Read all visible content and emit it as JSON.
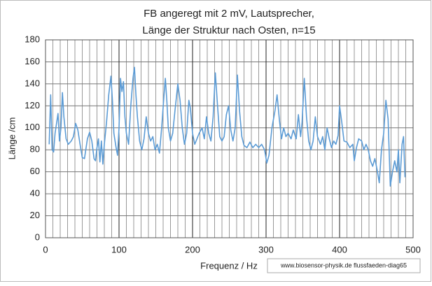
{
  "chart_data": {
    "type": "line",
    "title": [
      "FB angeregt mit 2 mV, Lautsprecher,",
      "Länge der Struktur nach Osten, n=15"
    ],
    "x_label": "Frequenz / Hz",
    "y_label": "Länge /cm",
    "annotation": "www.biosensor-physik.de  flussfaeden-diag65",
    "x": [
      5,
      7,
      9,
      11,
      13,
      17,
      19,
      21,
      23,
      25,
      28,
      31,
      35,
      38,
      41,
      44,
      47,
      50,
      53,
      57,
      60,
      63,
      66,
      68,
      70,
      72,
      74,
      76,
      78,
      80,
      83,
      86,
      89,
      91,
      93,
      96,
      98,
      100,
      102,
      104,
      106,
      108,
      110,
      113,
      116,
      119,
      121,
      123,
      125,
      128,
      131,
      134,
      137,
      140,
      143,
      146,
      149,
      152,
      155,
      158,
      161,
      163,
      165,
      167,
      170,
      173,
      176,
      180,
      183,
      186,
      189,
      192,
      195,
      197,
      200,
      203,
      206,
      209,
      213,
      216,
      219,
      222,
      225,
      228,
      231,
      234,
      237,
      240,
      243,
      246,
      249,
      252,
      255,
      258,
      261,
      264,
      267,
      270,
      274,
      278,
      282,
      286,
      290,
      294,
      298,
      301,
      304,
      308,
      312,
      315,
      318,
      321,
      324,
      327,
      330,
      334,
      337,
      341,
      344,
      347,
      349,
      352,
      355,
      358,
      361,
      364,
      367,
      370,
      374,
      377,
      380,
      383,
      386,
      389,
      392,
      395,
      398,
      400,
      403,
      406,
      410,
      414,
      418,
      420,
      423,
      426,
      430,
      433,
      436,
      439,
      442,
      445,
      448,
      451,
      454,
      457,
      460,
      463,
      466,
      469,
      472,
      475,
      478,
      480,
      482,
      485,
      487,
      489
    ],
    "series": [
      {
        "name": "Länge",
        "color": "#5b9bd5",
        "values": [
          85,
          130,
          80,
          78,
          95,
          113,
          88,
          100,
          132,
          110,
          90,
          85,
          88,
          92,
          104,
          98,
          85,
          73,
          72,
          90,
          96,
          88,
          72,
          70,
          82,
          90,
          69,
          88,
          67,
          85,
          105,
          130,
          147,
          125,
          95,
          82,
          75,
          100,
          145,
          133,
          142,
          110,
          95,
          85,
          120,
          145,
          155,
          130,
          110,
          88,
          80,
          90,
          110,
          95,
          88,
          92,
          80,
          85,
          77,
          100,
          128,
          145,
          125,
          100,
          88,
          95,
          115,
          140,
          125,
          100,
          85,
          95,
          125,
          118,
          95,
          85,
          90,
          95,
          100,
          90,
          110,
          95,
          88,
          110,
          150,
          120,
          92,
          88,
          92,
          112,
          120,
          98,
          88,
          100,
          148,
          115,
          92,
          84,
          82,
          87,
          82,
          85,
          82,
          85,
          80,
          68,
          75,
          100,
          115,
          130,
          108,
          90,
          100,
          92,
          95,
          90,
          98,
          90,
          112,
          92,
          105,
          145,
          110,
          88,
          80,
          88,
          110,
          92,
          85,
          92,
          80,
          100,
          90,
          82,
          88,
          85,
          93,
          120,
          105,
          88,
          87,
          82,
          85,
          70,
          82,
          90,
          88,
          80,
          85,
          80,
          70,
          65,
          72,
          62,
          50,
          80,
          95,
          125,
          108,
          47,
          60,
          70,
          60,
          80,
          50,
          85,
          92,
          55
        ]
      }
    ],
    "xlim": [
      0,
      500
    ],
    "xticks": [
      0,
      100,
      200,
      300,
      400,
      500
    ],
    "ylim": [
      0,
      180
    ],
    "yticks": [
      0,
      20,
      40,
      60,
      80,
      100,
      120,
      140,
      160,
      180
    ],
    "grid": true,
    "minor_grid": true
  }
}
